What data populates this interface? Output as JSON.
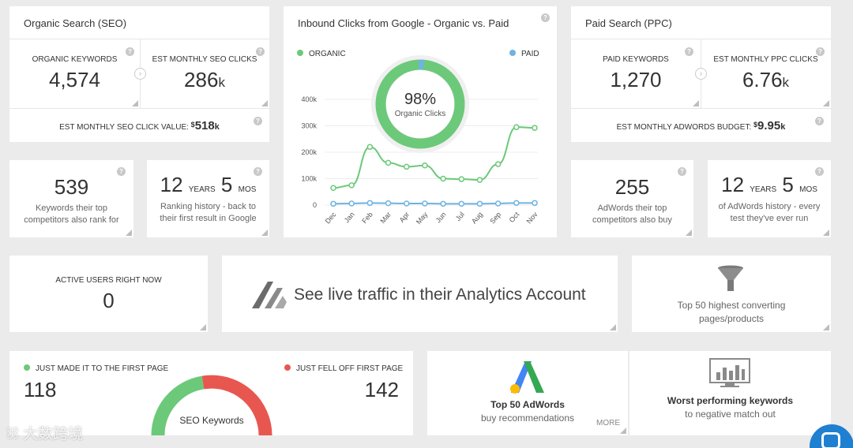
{
  "seo": {
    "title": "Organic Search (SEO)",
    "keywords_label": "ORGANIC KEYWORDS",
    "keywords_value": "4,574",
    "clicks_label": "EST MONTHLY SEO CLICKS",
    "clicks_value": "286",
    "clicks_unit": "k",
    "value_label": "EST MONTHLY SEO CLICK VALUE:",
    "value_prefix": "$",
    "value_value": "518",
    "value_unit": "k"
  },
  "ppc": {
    "title": "Paid Search (PPC)",
    "keywords_label": "PAID KEYWORDS",
    "keywords_value": "1,270",
    "clicks_label": "EST MONTHLY PPC CLICKS",
    "clicks_value": "6.76",
    "clicks_unit": "k",
    "budget_label": "EST MONTHLY ADWORDS BUDGET:",
    "budget_prefix": "$",
    "budget_value": "9.95",
    "budget_unit": "k"
  },
  "chart": {
    "title": "Inbound Clicks from Google - Organic vs. Paid",
    "organic_label": "ORGANIC",
    "paid_label": "PAID",
    "donut_pct": "98%",
    "donut_label": "Organic Clicks",
    "organic_color": "#6cc97a",
    "paid_color": "#6fb3e0"
  },
  "chart_data": {
    "type": "line",
    "x": [
      "Dec",
      "Jan",
      "Feb",
      "Mar",
      "Apr",
      "May",
      "Jun",
      "Jul",
      "Aug",
      "Sep",
      "Oct",
      "Nov"
    ],
    "yticks": [
      "0",
      "100k",
      "200k",
      "300k",
      "400k"
    ],
    "ylim": [
      0,
      400000
    ],
    "series": [
      {
        "name": "ORGANIC",
        "values": [
          65000,
          75000,
          220000,
          160000,
          145000,
          150000,
          100000,
          98000,
          95000,
          155000,
          295000,
          292000
        ]
      },
      {
        "name": "PAID",
        "values": [
          5000,
          6000,
          8000,
          7000,
          6000,
          6000,
          5000,
          5000,
          5000,
          6000,
          8000,
          8000
        ]
      }
    ]
  },
  "stats": {
    "seo_competitors_value": "539",
    "seo_competitors_text": "Keywords their top competitors also rank for",
    "seo_history_years": "12",
    "seo_history_years_unit": "YEARS",
    "seo_history_mos": "5",
    "seo_history_mos_unit": "MOS",
    "seo_history_text": "Ranking history - back to their first result in Google",
    "ppc_competitors_value": "255",
    "ppc_competitors_text": "AdWords their top competitors also buy",
    "ppc_history_years": "12",
    "ppc_history_years_unit": "YEARS",
    "ppc_history_mos": "5",
    "ppc_history_mos_unit": "MOS",
    "ppc_history_text": "of AdWords history - every test they've ever run"
  },
  "active_users": {
    "label": "ACTIVE USERS RIGHT NOW",
    "value": "0"
  },
  "analytics": {
    "text": "See live traffic in their Analytics Account"
  },
  "top_converting": {
    "text": "Top 50 highest converting pages/products"
  },
  "keywords_split": {
    "made_label": "JUST MADE IT TO THE FIRST PAGE",
    "made_value": "118",
    "fell_label": "JUST FELL OFF FIRST PAGE",
    "fell_value": "142",
    "gauge_label": "SEO Keywords",
    "made_color": "#6cc97a",
    "fell_color": "#e8574f"
  },
  "adwords": {
    "title": "Top 50 AdWords",
    "subtitle": "buy recommendations",
    "more": "MORE"
  },
  "worst": {
    "title": "Worst performing keywords",
    "subtitle": "to negative match out"
  },
  "watermark": {
    "text": "大数跨境"
  },
  "help_glyph": "?"
}
